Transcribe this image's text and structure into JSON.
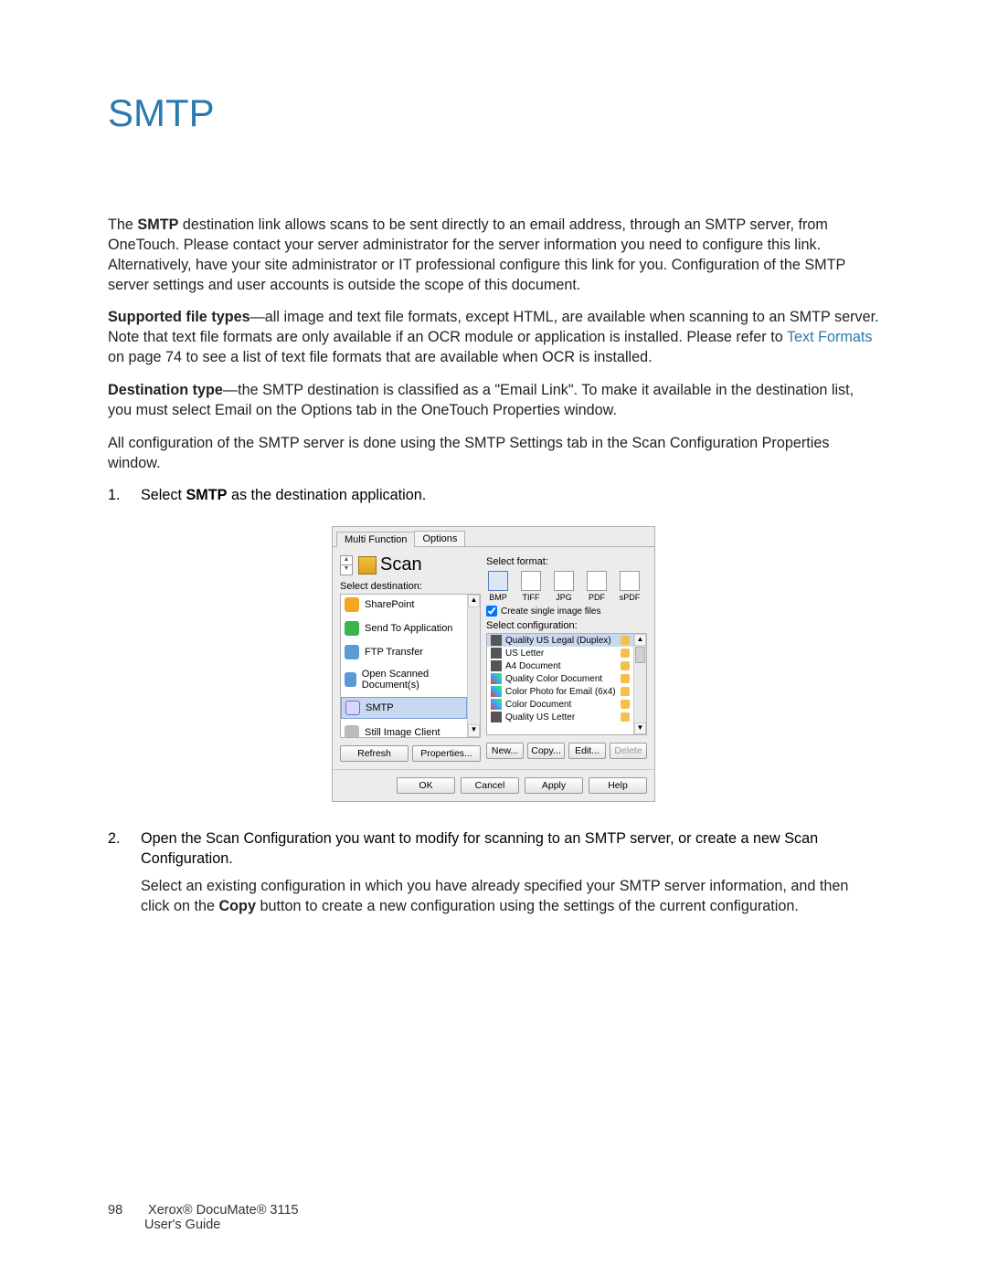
{
  "title": "SMTP",
  "para1_a": "The ",
  "para1_b": "SMTP",
  "para1_c": " destination link allows scans to be sent directly to an email address, through an SMTP server, from OneTouch. Please contact your server administrator for the server information you need to configure this link. Alternatively, have your site administrator or IT professional configure this link for you. Configuration of the SMTP server settings and user accounts is outside the scope of this document.",
  "para2_a": "Supported file types",
  "para2_b": "—all image and text file formats, except HTML, are available when scanning to an SMTP server. Note that text file formats are only available if an OCR module or application is installed. Please refer to ",
  "para2_link": "Text Formats",
  "para2_c": " on page 74 to see a list of text file formats that are available when OCR is installed.",
  "para3_a": "Destination type",
  "para3_b": "—the SMTP destination is classified as a \"Email Link\". To make it available in the destination list, you must select Email on the Options tab in the OneTouch Properties window.",
  "para4": "All configuration of the SMTP server is done using the SMTP Settings tab in the Scan Configuration Properties window.",
  "step1_a": "Select ",
  "step1_b": "SMTP",
  "step1_c": " as the destination application.",
  "step2_a": "Open the Scan Configuration you want to modify for scanning to an SMTP server, or create a new Scan Configuration.",
  "step2_b1": "Select an existing configuration in which you have already specified your SMTP server information, and then click on the ",
  "step2_b2": "Copy",
  "step2_b3": " button to create a new configuration using the settings of the current configuration.",
  "dlg": {
    "tabs": [
      "Multi Function",
      "Options"
    ],
    "scan_label": "Scan",
    "select_dest_label": "Select destination:",
    "destinations": [
      {
        "name": "SharePoint",
        "sel": false,
        "ic": "ic-sp"
      },
      {
        "name": "Send To Application",
        "sel": false,
        "ic": "ic-app"
      },
      {
        "name": "FTP Transfer",
        "sel": false,
        "ic": "ic-ftp"
      },
      {
        "name": "Open Scanned Document(s)",
        "sel": false,
        "ic": "ic-open"
      },
      {
        "name": "SMTP",
        "sel": true,
        "ic": "ic-smtp"
      },
      {
        "name": "Still Image Client",
        "sel": false,
        "ic": "ic-still"
      }
    ],
    "refresh": "Refresh",
    "properties": "Properties...",
    "select_format_label": "Select format:",
    "formats": [
      {
        "l": "BMP",
        "sel": true
      },
      {
        "l": "TIFF",
        "sel": false
      },
      {
        "l": "JPG",
        "sel": false
      },
      {
        "l": "PDF",
        "sel": false
      },
      {
        "l": "sPDF",
        "sel": false
      }
    ],
    "create_single": "Create single image files",
    "select_config_label": "Select configuration:",
    "configs": [
      {
        "name": "Quality US Legal (Duplex)",
        "sel": true,
        "ic": "bw"
      },
      {
        "name": "US Letter",
        "sel": false,
        "ic": "bw"
      },
      {
        "name": "A4 Document",
        "sel": false,
        "ic": "bw"
      },
      {
        "name": "Quality Color Document",
        "sel": false,
        "ic": "col"
      },
      {
        "name": "Color Photo for Email (6x4)",
        "sel": false,
        "ic": "col"
      },
      {
        "name": "Color Document",
        "sel": false,
        "ic": "col"
      },
      {
        "name": "Quality US Letter",
        "sel": false,
        "ic": "bw"
      }
    ],
    "new": "New...",
    "copy": "Copy...",
    "edit": "Edit...",
    "delete": "Delete",
    "ok": "OK",
    "cancel": "Cancel",
    "apply": "Apply",
    "help": "Help"
  },
  "footer_page": "98",
  "footer_line1": "Xerox® DocuMate® 3115",
  "footer_line2": "User's Guide"
}
